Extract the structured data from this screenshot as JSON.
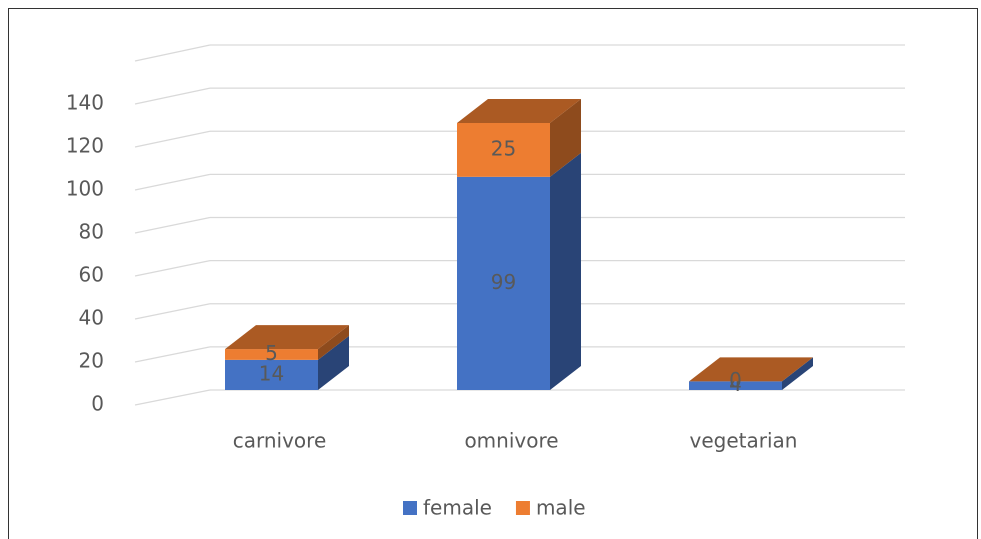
{
  "chart_data": {
    "type": "bar3d_stacked",
    "categories": [
      "carnivore",
      "omnivore",
      "vegetarian"
    ],
    "series": [
      {
        "name": "female",
        "color": "#4472c4",
        "values": [
          14,
          99,
          4
        ]
      },
      {
        "name": "male",
        "color": "#ed7d31",
        "values": [
          5,
          25,
          0
        ]
      }
    ],
    "ylim": [
      0,
      160
    ],
    "yticks": [
      0,
      20,
      40,
      60,
      80,
      100,
      120,
      140
    ],
    "grid": true,
    "legend": "bottom"
  }
}
